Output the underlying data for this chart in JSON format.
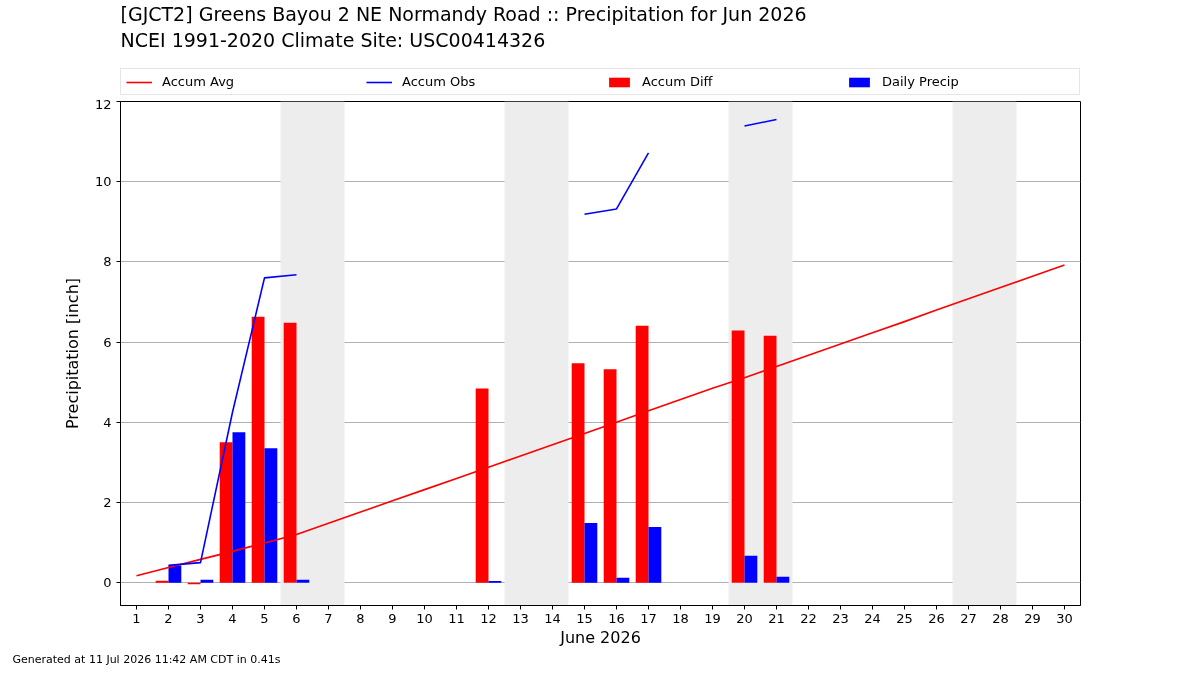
{
  "chart_data": {
    "type": "bar",
    "title": "[GJCT2] Greens Bayou 2 NE Normandy Road :: Precipitation for Jun 2026",
    "subtitle": "NCEI 1991-2020 Climate Site: USC00414326",
    "xlabel": "June 2026",
    "ylabel": "Precipitation [inch]",
    "annotations": [
      "Generated at 11 Jul 2026 11:42 AM CDT in 0.41s"
    ],
    "x": [
      1,
      2,
      3,
      4,
      5,
      6,
      7,
      8,
      9,
      10,
      11,
      12,
      13,
      14,
      15,
      16,
      17,
      18,
      19,
      20,
      21,
      22,
      23,
      24,
      25,
      26,
      27,
      28,
      29,
      30
    ],
    "series": [
      {
        "name": "Accum Avg",
        "type": "line",
        "color": "#ff0000",
        "values": [
          0.17,
          0.38,
          0.58,
          0.78,
          0.99,
          1.2,
          1.48,
          1.76,
          2.04,
          2.32,
          2.6,
          2.88,
          3.16,
          3.44,
          3.72,
          4.0,
          4.29,
          4.57,
          4.85,
          5.11,
          5.39,
          5.67,
          5.95,
          6.23,
          6.51,
          6.8,
          7.08,
          7.36,
          7.64,
          7.92
        ]
      },
      {
        "name": "Accum Obs",
        "type": "line",
        "color": "#0000ff",
        "values": [
          null,
          0.43,
          0.5,
          4.25,
          7.6,
          7.68,
          null,
          null,
          null,
          null,
          null,
          null,
          null,
          null,
          9.19,
          9.32,
          10.72,
          null,
          null,
          11.39,
          11.55,
          null,
          null,
          null,
          null,
          null,
          null,
          null,
          null,
          null
        ]
      },
      {
        "name": "Accum Diff",
        "color": "#ff0000",
        "values": [
          null,
          0.05,
          -0.04,
          3.5,
          6.63,
          6.48,
          null,
          null,
          null,
          null,
          null,
          4.84,
          null,
          null,
          5.47,
          5.32,
          6.41,
          null,
          null,
          6.29,
          6.16,
          null,
          null,
          null,
          null,
          null,
          null,
          null,
          null,
          null
        ]
      },
      {
        "name": "Daily Precip",
        "color": "#0000ff",
        "values": [
          null,
          0.43,
          0.07,
          3.75,
          3.35,
          0.07,
          null,
          null,
          null,
          null,
          null,
          0.04,
          null,
          null,
          1.49,
          0.12,
          1.39,
          null,
          null,
          0.67,
          0.15,
          null,
          null,
          null,
          null,
          null,
          null,
          null,
          null,
          null
        ]
      }
    ],
    "xlim": [
      0.5,
      30.5
    ],
    "ylim": [
      -0.57,
      12
    ],
    "xticks": [
      1,
      2,
      3,
      4,
      5,
      6,
      7,
      8,
      9,
      10,
      11,
      12,
      13,
      14,
      15,
      16,
      17,
      18,
      19,
      20,
      21,
      22,
      23,
      24,
      25,
      26,
      27,
      28,
      29,
      30
    ],
    "yticks": [
      0,
      2,
      4,
      6,
      8,
      10,
      12
    ],
    "bands": [
      {
        "axis": "x",
        "from": 5.5,
        "to": 7.5,
        "color": "#ededed"
      },
      {
        "axis": "x",
        "from": 12.5,
        "to": 14.5,
        "color": "#ededed"
      },
      {
        "axis": "x",
        "from": 19.5,
        "to": 21.5,
        "color": "#ededed"
      },
      {
        "axis": "x",
        "from": 26.5,
        "to": 28.5,
        "color": "#ededed"
      }
    ],
    "grid": "y",
    "legend": "top"
  }
}
